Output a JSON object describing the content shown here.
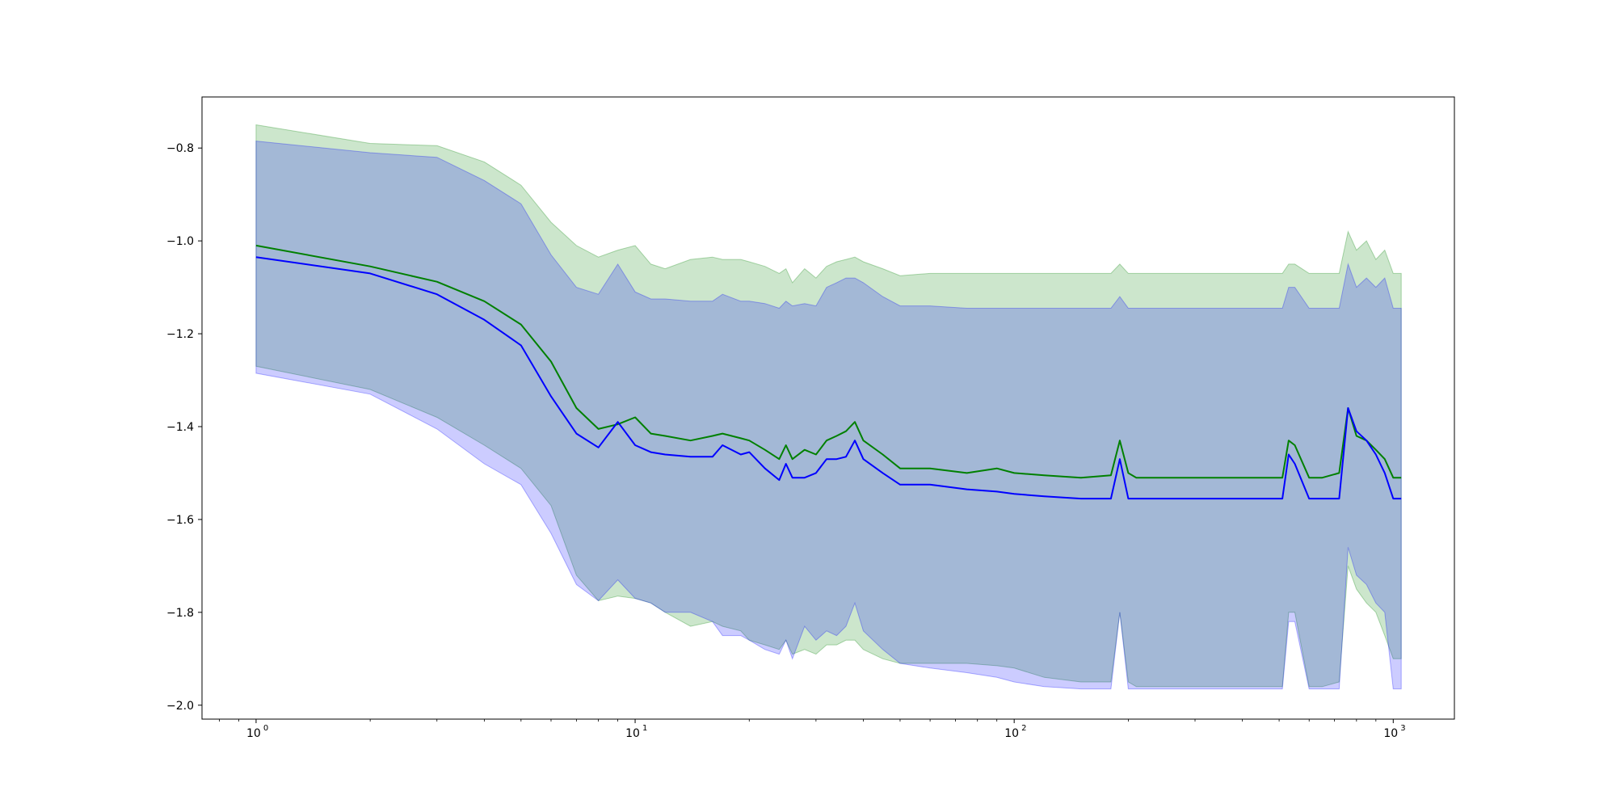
{
  "chart_data": {
    "type": "line",
    "title": "",
    "xlabel": "",
    "ylabel": "",
    "xscale": "log",
    "xlim": [
      0.72,
      1450
    ],
    "ylim": [
      -2.03,
      -0.69
    ],
    "grid": false,
    "legend": "none",
    "x_ticks": [
      {
        "value": 1,
        "base": "10",
        "exp": "0"
      },
      {
        "value": 10,
        "base": "10",
        "exp": "1"
      },
      {
        "value": 100,
        "base": "10",
        "exp": "2"
      },
      {
        "value": 1000,
        "base": "10",
        "exp": "3"
      }
    ],
    "y_ticks": [
      {
        "value": -0.8,
        "label": "−0.8"
      },
      {
        "value": -1.0,
        "label": "−1.0"
      },
      {
        "value": -1.2,
        "label": "−1.2"
      },
      {
        "value": -1.4,
        "label": "−1.4"
      },
      {
        "value": -1.6,
        "label": "−1.6"
      },
      {
        "value": -1.8,
        "label": "−1.8"
      },
      {
        "value": -2.0,
        "label": "−2.0"
      }
    ],
    "series": [
      {
        "color": "#008000",
        "band_color": "#008000",
        "x": [
          1,
          2,
          3,
          4,
          5,
          6,
          7,
          8,
          9,
          10,
          11,
          12,
          14,
          16,
          17,
          19,
          20,
          22,
          24,
          25,
          26,
          28,
          30,
          32,
          34,
          36,
          38,
          40,
          45,
          50,
          60,
          75,
          90,
          100,
          120,
          150,
          180,
          190,
          200,
          210,
          300,
          400,
          510,
          530,
          550,
          600,
          650,
          720,
          760,
          800,
          850,
          900,
          950,
          1000,
          1050
        ],
        "mean": [
          -1.01,
          -1.055,
          -1.088,
          -1.13,
          -1.18,
          -1.26,
          -1.36,
          -1.405,
          -1.395,
          -1.38,
          -1.415,
          -1.42,
          -1.43,
          -1.42,
          -1.415,
          -1.425,
          -1.43,
          -1.45,
          -1.47,
          -1.44,
          -1.47,
          -1.45,
          -1.46,
          -1.43,
          -1.42,
          -1.41,
          -1.39,
          -1.43,
          -1.46,
          -1.49,
          -1.49,
          -1.5,
          -1.49,
          -1.5,
          -1.505,
          -1.51,
          -1.505,
          -1.43,
          -1.5,
          -1.51,
          -1.51,
          -1.51,
          -1.51,
          -1.43,
          -1.44,
          -1.51,
          -1.51,
          -1.5,
          -1.36,
          -1.42,
          -1.43,
          -1.45,
          -1.47,
          -1.51,
          -1.51
        ],
        "upper": [
          -0.75,
          -0.79,
          -0.795,
          -0.83,
          -0.88,
          -0.96,
          -1.01,
          -1.035,
          -1.02,
          -1.01,
          -1.05,
          -1.06,
          -1.04,
          -1.035,
          -1.04,
          -1.04,
          -1.045,
          -1.055,
          -1.07,
          -1.06,
          -1.09,
          -1.06,
          -1.08,
          -1.055,
          -1.045,
          -1.04,
          -1.035,
          -1.045,
          -1.06,
          -1.075,
          -1.07,
          -1.07,
          -1.07,
          -1.07,
          -1.07,
          -1.07,
          -1.07,
          -1.05,
          -1.07,
          -1.07,
          -1.07,
          -1.07,
          -1.07,
          -1.05,
          -1.05,
          -1.07,
          -1.07,
          -1.07,
          -0.98,
          -1.02,
          -1.0,
          -1.04,
          -1.02,
          -1.07,
          -1.07
        ],
        "lower": [
          -1.27,
          -1.32,
          -1.38,
          -1.44,
          -1.49,
          -1.57,
          -1.72,
          -1.775,
          -1.765,
          -1.77,
          -1.78,
          -1.8,
          -1.83,
          -1.82,
          -1.83,
          -1.84,
          -1.86,
          -1.87,
          -1.88,
          -1.86,
          -1.89,
          -1.88,
          -1.89,
          -1.87,
          -1.87,
          -1.86,
          -1.86,
          -1.88,
          -1.9,
          -1.91,
          -1.91,
          -1.91,
          -1.915,
          -1.92,
          -1.94,
          -1.95,
          -1.95,
          -1.8,
          -1.95,
          -1.96,
          -1.96,
          -1.96,
          -1.96,
          -1.8,
          -1.8,
          -1.96,
          -1.96,
          -1.95,
          -1.7,
          -1.75,
          -1.78,
          -1.8,
          -1.85,
          -1.9,
          -1.9
        ]
      },
      {
        "color": "#0000ff",
        "band_color": "#0000ff",
        "x": [
          1,
          2,
          3,
          4,
          5,
          6,
          7,
          8,
          9,
          10,
          11,
          12,
          14,
          16,
          17,
          19,
          20,
          22,
          24,
          25,
          26,
          28,
          30,
          32,
          34,
          36,
          38,
          40,
          45,
          50,
          60,
          75,
          90,
          100,
          120,
          150,
          180,
          190,
          200,
          210,
          300,
          400,
          510,
          530,
          550,
          600,
          650,
          720,
          760,
          800,
          850,
          900,
          950,
          1000,
          1050
        ],
        "mean": [
          -1.035,
          -1.07,
          -1.115,
          -1.17,
          -1.225,
          -1.335,
          -1.415,
          -1.445,
          -1.39,
          -1.44,
          -1.455,
          -1.46,
          -1.465,
          -1.465,
          -1.44,
          -1.46,
          -1.455,
          -1.49,
          -1.515,
          -1.48,
          -1.51,
          -1.51,
          -1.5,
          -1.47,
          -1.47,
          -1.465,
          -1.43,
          -1.47,
          -1.5,
          -1.525,
          -1.525,
          -1.535,
          -1.54,
          -1.545,
          -1.55,
          -1.555,
          -1.555,
          -1.47,
          -1.555,
          -1.555,
          -1.555,
          -1.555,
          -1.555,
          -1.46,
          -1.48,
          -1.555,
          -1.555,
          -1.555,
          -1.36,
          -1.41,
          -1.43,
          -1.46,
          -1.5,
          -1.555,
          -1.555
        ],
        "upper": [
          -0.785,
          -0.81,
          -0.82,
          -0.87,
          -0.92,
          -1.03,
          -1.1,
          -1.115,
          -1.05,
          -1.11,
          -1.125,
          -1.125,
          -1.13,
          -1.13,
          -1.115,
          -1.13,
          -1.13,
          -1.135,
          -1.145,
          -1.13,
          -1.14,
          -1.135,
          -1.14,
          -1.1,
          -1.09,
          -1.08,
          -1.08,
          -1.09,
          -1.12,
          -1.14,
          -1.14,
          -1.145,
          -1.145,
          -1.145,
          -1.145,
          -1.145,
          -1.145,
          -1.12,
          -1.145,
          -1.145,
          -1.145,
          -1.145,
          -1.145,
          -1.1,
          -1.1,
          -1.145,
          -1.145,
          -1.145,
          -1.05,
          -1.1,
          -1.08,
          -1.1,
          -1.08,
          -1.145,
          -1.145
        ],
        "lower": [
          -1.285,
          -1.33,
          -1.405,
          -1.48,
          -1.525,
          -1.63,
          -1.74,
          -1.775,
          -1.73,
          -1.77,
          -1.78,
          -1.8,
          -1.8,
          -1.82,
          -1.85,
          -1.85,
          -1.86,
          -1.88,
          -1.89,
          -1.86,
          -1.9,
          -1.83,
          -1.86,
          -1.84,
          -1.85,
          -1.83,
          -1.78,
          -1.84,
          -1.88,
          -1.91,
          -1.92,
          -1.93,
          -1.94,
          -1.95,
          -1.96,
          -1.965,
          -1.965,
          -1.8,
          -1.965,
          -1.965,
          -1.965,
          -1.965,
          -1.965,
          -1.82,
          -1.82,
          -1.965,
          -1.965,
          -1.965,
          -1.66,
          -1.72,
          -1.74,
          -1.78,
          -1.8,
          -1.965,
          -1.965
        ]
      }
    ]
  }
}
